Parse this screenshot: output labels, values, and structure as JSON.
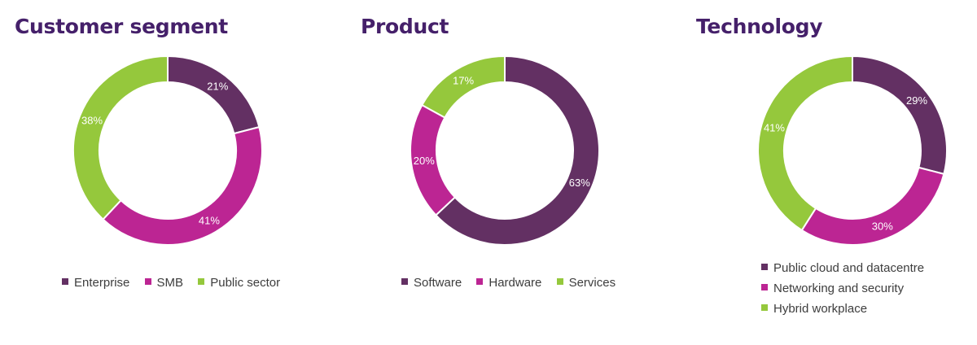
{
  "colors": {
    "purple": "#633063",
    "magenta": "#bc2593",
    "green": "#95c83c",
    "title": "#45206a"
  },
  "chart_data": [
    {
      "type": "pie",
      "style": "donut",
      "title": "Customer segment",
      "categories": [
        "Enterprise",
        "SMB",
        "Public sector"
      ],
      "values": [
        21,
        41,
        38
      ],
      "labels": [
        "21%",
        "41%",
        "38%"
      ],
      "colors": [
        "#633063",
        "#bc2593",
        "#95c83c"
      ],
      "legend_position": "bottom"
    },
    {
      "type": "pie",
      "style": "donut",
      "title": "Product",
      "categories": [
        "Software",
        "Hardware",
        "Services"
      ],
      "values": [
        63,
        20,
        17
      ],
      "labels": [
        "63%",
        "20%",
        "17%"
      ],
      "colors": [
        "#633063",
        "#bc2593",
        "#95c83c"
      ],
      "legend_position": "bottom"
    },
    {
      "type": "pie",
      "style": "donut",
      "title": "Technology",
      "categories": [
        "Public cloud and datacentre",
        "Networking and security",
        "Hybrid workplace"
      ],
      "values": [
        29,
        30,
        41
      ],
      "labels": [
        "29%",
        "30%",
        "41%"
      ],
      "colors": [
        "#633063",
        "#bc2593",
        "#95c83c"
      ],
      "legend_position": "bottom"
    }
  ]
}
